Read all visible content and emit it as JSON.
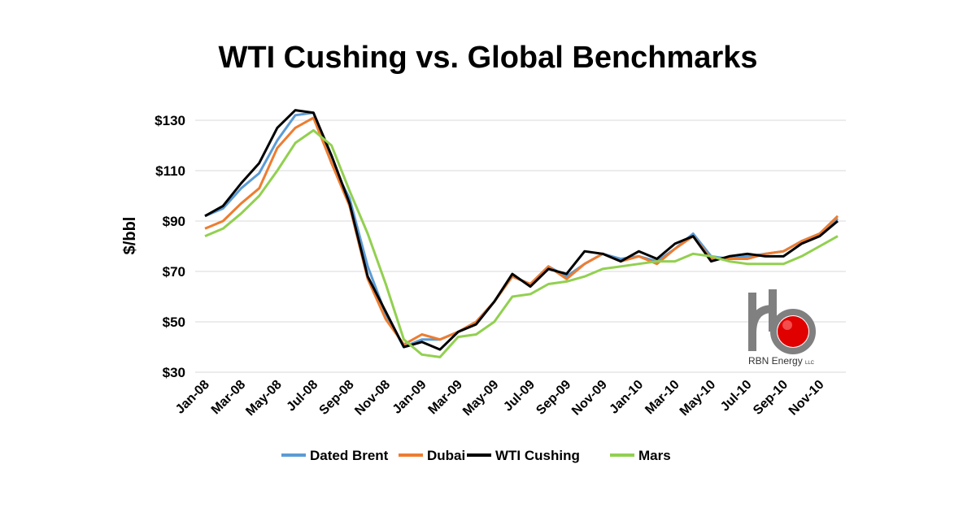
{
  "chart_data": {
    "type": "line",
    "title": "WTI Cushing vs. Global Benchmarks",
    "xlabel": "",
    "ylabel": "$/bbl",
    "ylim": [
      30,
      140
    ],
    "yticks": [
      "$30",
      "$50",
      "$70",
      "$90",
      "$110",
      "$130"
    ],
    "ytick_values": [
      30,
      50,
      70,
      90,
      110,
      130
    ],
    "grid": true,
    "legend_position": "bottom",
    "categories": [
      "Jan-08",
      "Feb-08",
      "Mar-08",
      "Apr-08",
      "May-08",
      "Jun-08",
      "Jul-08",
      "Aug-08",
      "Sep-08",
      "Oct-08",
      "Nov-08",
      "Dec-08",
      "Jan-09",
      "Feb-09",
      "Mar-09",
      "Apr-09",
      "May-09",
      "Jun-09",
      "Jul-09",
      "Aug-09",
      "Sep-09",
      "Oct-09",
      "Nov-09",
      "Dec-09",
      "Jan-10",
      "Feb-10",
      "Mar-10",
      "Apr-10",
      "May-10",
      "Jun-10",
      "Jul-10",
      "Aug-10",
      "Sep-10",
      "Oct-10",
      "Nov-10",
      "Dec-10"
    ],
    "xtick_labels": [
      "Jan-08",
      "Mar-08",
      "May-08",
      "Jul-08",
      "Sep-08",
      "Nov-08",
      "Jan-09",
      "Mar-09",
      "May-09",
      "Jul-09",
      "Sep-09",
      "Nov-09",
      "Jan-10",
      "Mar-10",
      "May-10",
      "Jul-10",
      "Sep-10",
      "Nov-10"
    ],
    "series": [
      {
        "name": "Dated Brent",
        "color": "#5b9bd5",
        "values": [
          92,
          95,
          103,
          109,
          122,
          132,
          133,
          113,
          99,
          72,
          53,
          40,
          43,
          43,
          46,
          50,
          58,
          68,
          65,
          72,
          68,
          73,
          77,
          75,
          76,
          74,
          79,
          85,
          76,
          75,
          76,
          77,
          78,
          82,
          85,
          91
        ]
      },
      {
        "name": "Dubai",
        "color": "#ed7d31",
        "values": [
          87,
          90,
          97,
          103,
          119,
          127,
          131,
          113,
          96,
          67,
          51,
          41,
          45,
          43,
          46,
          50,
          58,
          68,
          65,
          72,
          67,
          73,
          77,
          74,
          76,
          73,
          79,
          84,
          75,
          75,
          75,
          77,
          78,
          82,
          85,
          92
        ]
      },
      {
        "name": "WTI Cushing",
        "color": "#000000",
        "values": [
          92,
          96,
          105,
          113,
          127,
          134,
          133,
          116,
          97,
          68,
          54,
          40,
          42,
          39,
          46,
          49,
          58,
          69,
          64,
          71,
          69,
          78,
          77,
          74,
          78,
          75,
          81,
          84,
          74,
          76,
          77,
          76,
          76,
          81,
          84,
          90
        ]
      },
      {
        "name": "Mars",
        "color": "#92d050",
        "values": [
          84,
          87,
          93,
          100,
          110,
          121,
          126,
          120,
          102,
          85,
          65,
          43,
          37,
          36,
          44,
          45,
          50,
          60,
          61,
          65,
          66,
          68,
          71,
          72,
          73,
          74,
          74,
          77,
          76,
          74,
          73,
          73,
          73,
          76,
          80,
          84
        ]
      }
    ]
  },
  "logo": {
    "company": "RBN Energy",
    "suffix": "LLC",
    "accent_color": "#e00000",
    "icon": "rbn-logo-icon"
  }
}
